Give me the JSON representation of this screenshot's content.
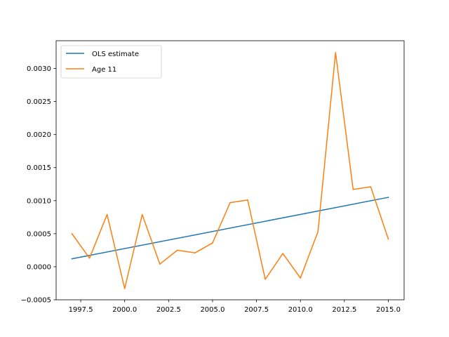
{
  "chart_data": {
    "type": "line",
    "title": "",
    "xlabel": "",
    "ylabel": "",
    "xlim": [
      1996.1,
      2015.9
    ],
    "ylim": [
      -0.0005,
      0.00342
    ],
    "grid": false,
    "legend_position": "top-left",
    "x_ticks": [
      1997.5,
      2000.0,
      2002.5,
      2005.0,
      2007.5,
      2010.0,
      2012.5,
      2015.0
    ],
    "x_tick_labels": [
      "1997.5",
      "2000.0",
      "2002.5",
      "2005.0",
      "2007.5",
      "2010.0",
      "2012.5",
      "2015.0"
    ],
    "y_ticks": [
      -0.0005,
      0.0,
      0.0005,
      0.001,
      0.0015,
      0.002,
      0.0025,
      0.003
    ],
    "y_tick_labels": [
      "−0.0005",
      "0.0000",
      "0.0005",
      "0.0010",
      "0.0015",
      "0.0020",
      "0.0025",
      "0.0030"
    ],
    "series": [
      {
        "name": "OLS estimate",
        "color": "#1f77b4",
        "x": [
          1997,
          2015
        ],
        "values": [
          0.00012,
          0.00105
        ]
      },
      {
        "name": "Age 11",
        "color": "#ff7f0e",
        "x": [
          1997,
          1998,
          1999,
          2000,
          2001,
          2002,
          2003,
          2004,
          2005,
          2006,
          2007,
          2008,
          2009,
          2010,
          2011,
          2012,
          2013,
          2014,
          2015
        ],
        "values": [
          0.0005,
          0.00013,
          0.00079,
          -0.00033,
          0.00079,
          4e-05,
          0.00025,
          0.00021,
          0.00036,
          0.00097,
          0.00101,
          -0.00019,
          0.0002,
          -0.00017,
          0.00053,
          0.00324,
          0.00117,
          0.00121,
          0.00042
        ]
      }
    ]
  }
}
